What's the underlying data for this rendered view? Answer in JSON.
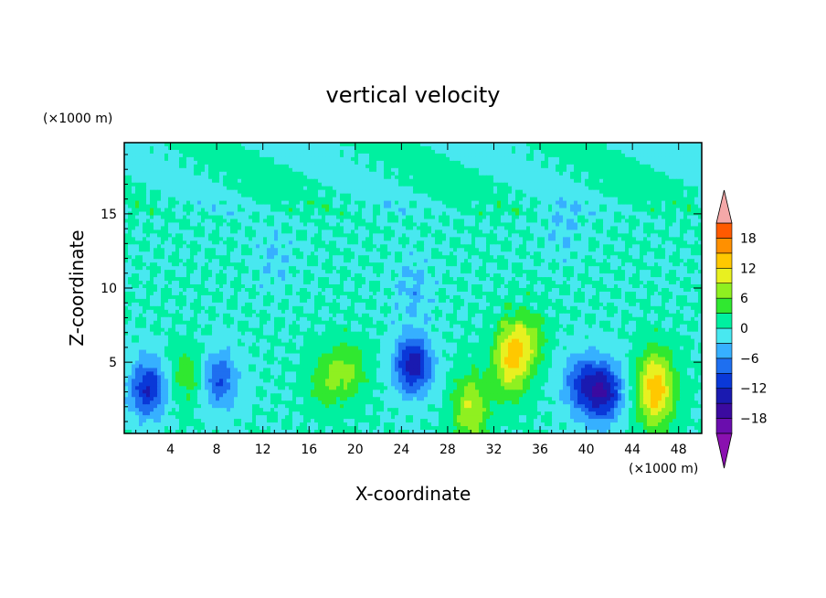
{
  "chart_data": {
    "type": "heatmap",
    "title": "vertical velocity",
    "xlabel": "X-coordinate",
    "ylabel": "Z-coordinate",
    "x_units": "(×1000 m)",
    "y_units": "(×1000 m)",
    "xlim": [
      0,
      50
    ],
    "ylim": [
      0.2,
      19.8
    ],
    "x_ticks": [
      4,
      8,
      12,
      16,
      20,
      24,
      28,
      32,
      36,
      40,
      44,
      48
    ],
    "y_ticks": [
      5,
      10,
      15
    ],
    "colorbar": {
      "levels": [
        -21,
        -18,
        -15,
        -12,
        -9,
        -6,
        -3,
        0,
        3,
        6,
        9,
        12,
        15,
        18,
        21
      ],
      "tick_labels": [
        "18",
        "12",
        "6",
        "0",
        "−6",
        "−12",
        "−18"
      ],
      "tick_values": [
        18,
        12,
        6,
        0,
        -6,
        -12,
        -18
      ],
      "colors": [
        "#6a0dad",
        "#3b0aa0",
        "#1a1ab0",
        "#0a38d8",
        "#1e6ff0",
        "#36b0ff",
        "#48e8f0",
        "#00f0a0",
        "#30e830",
        "#8ff020",
        "#e8f020",
        "#ffc800",
        "#ff9000",
        "#ff5a00",
        "#e81e10",
        "#f4a0a0"
      ],
      "under_color": "#8a10b0",
      "over_color": "#f4a8a8"
    },
    "features": [
      {
        "x": 2.0,
        "z": 3.2,
        "w": -12
      },
      {
        "x": 5.5,
        "z": 4.0,
        "w": 5
      },
      {
        "x": 8.2,
        "z": 3.8,
        "w": -9
      },
      {
        "x": 17.5,
        "z": 3.8,
        "w": 5
      },
      {
        "x": 19.5,
        "z": 4.5,
        "w": 6
      },
      {
        "x": 25.0,
        "z": 4.8,
        "w": -14
      },
      {
        "x": 30.0,
        "z": 1.8,
        "w": 9
      },
      {
        "x": 33.5,
        "z": 5.2,
        "w": 12
      },
      {
        "x": 35.0,
        "z": 6.5,
        "w": 6
      },
      {
        "x": 39.5,
        "z": 3.5,
        "w": -9
      },
      {
        "x": 41.5,
        "z": 3.0,
        "w": -14
      },
      {
        "x": 46.0,
        "z": 2.8,
        "w": 12
      },
      {
        "x": 46.0,
        "z": 4.5,
        "w": 4
      },
      {
        "x": 13.0,
        "z": 12.0,
        "w": -3
      },
      {
        "x": 25.0,
        "z": 10.0,
        "w": -4
      },
      {
        "x": 38.0,
        "z": 14.0,
        "w": -3
      }
    ]
  }
}
